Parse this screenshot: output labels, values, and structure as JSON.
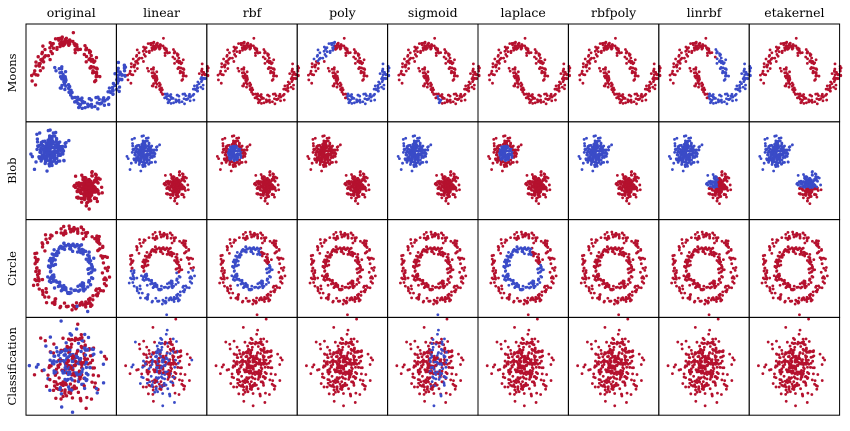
{
  "chart_data": {
    "type": "scatter",
    "layout": "grid",
    "columns": [
      "original",
      "linear",
      "rbf",
      "poly",
      "sigmoid",
      "laplace",
      "rbfpoly",
      "linrbf",
      "etakernel"
    ],
    "rows": [
      "Moons",
      "Blob",
      "Circle",
      "Classification"
    ],
    "classes": [
      {
        "id": 0,
        "color": "#3a4bc7"
      },
      {
        "id": 1,
        "color": "#b5112e"
      }
    ],
    "axes": {
      "ticks": false,
      "grid": false,
      "legend": false
    },
    "notes": "Each panel is a scatter of a 2D dataset; 'original' shows true labels, other columns show predicted labels by kernel.",
    "panels": {
      "Moons": {
        "original": "two interleaving half-moons: upper moon red, lower moon blue",
        "linear": "mostly red, blue on lower-right part of lower moon",
        "rbf": "almost entirely red",
        "poly": "upper-left of upper moon blue, lower moon right side blue",
        "sigmoid": "almost entirely red, few blue at bottom",
        "laplace": "almost entirely red",
        "rbfpoly": "almost entirely red",
        "linrbf": "upper moon right tip blue, lower moon right side blue",
        "etakernel": "almost entirely red"
      }
    }
  }
}
